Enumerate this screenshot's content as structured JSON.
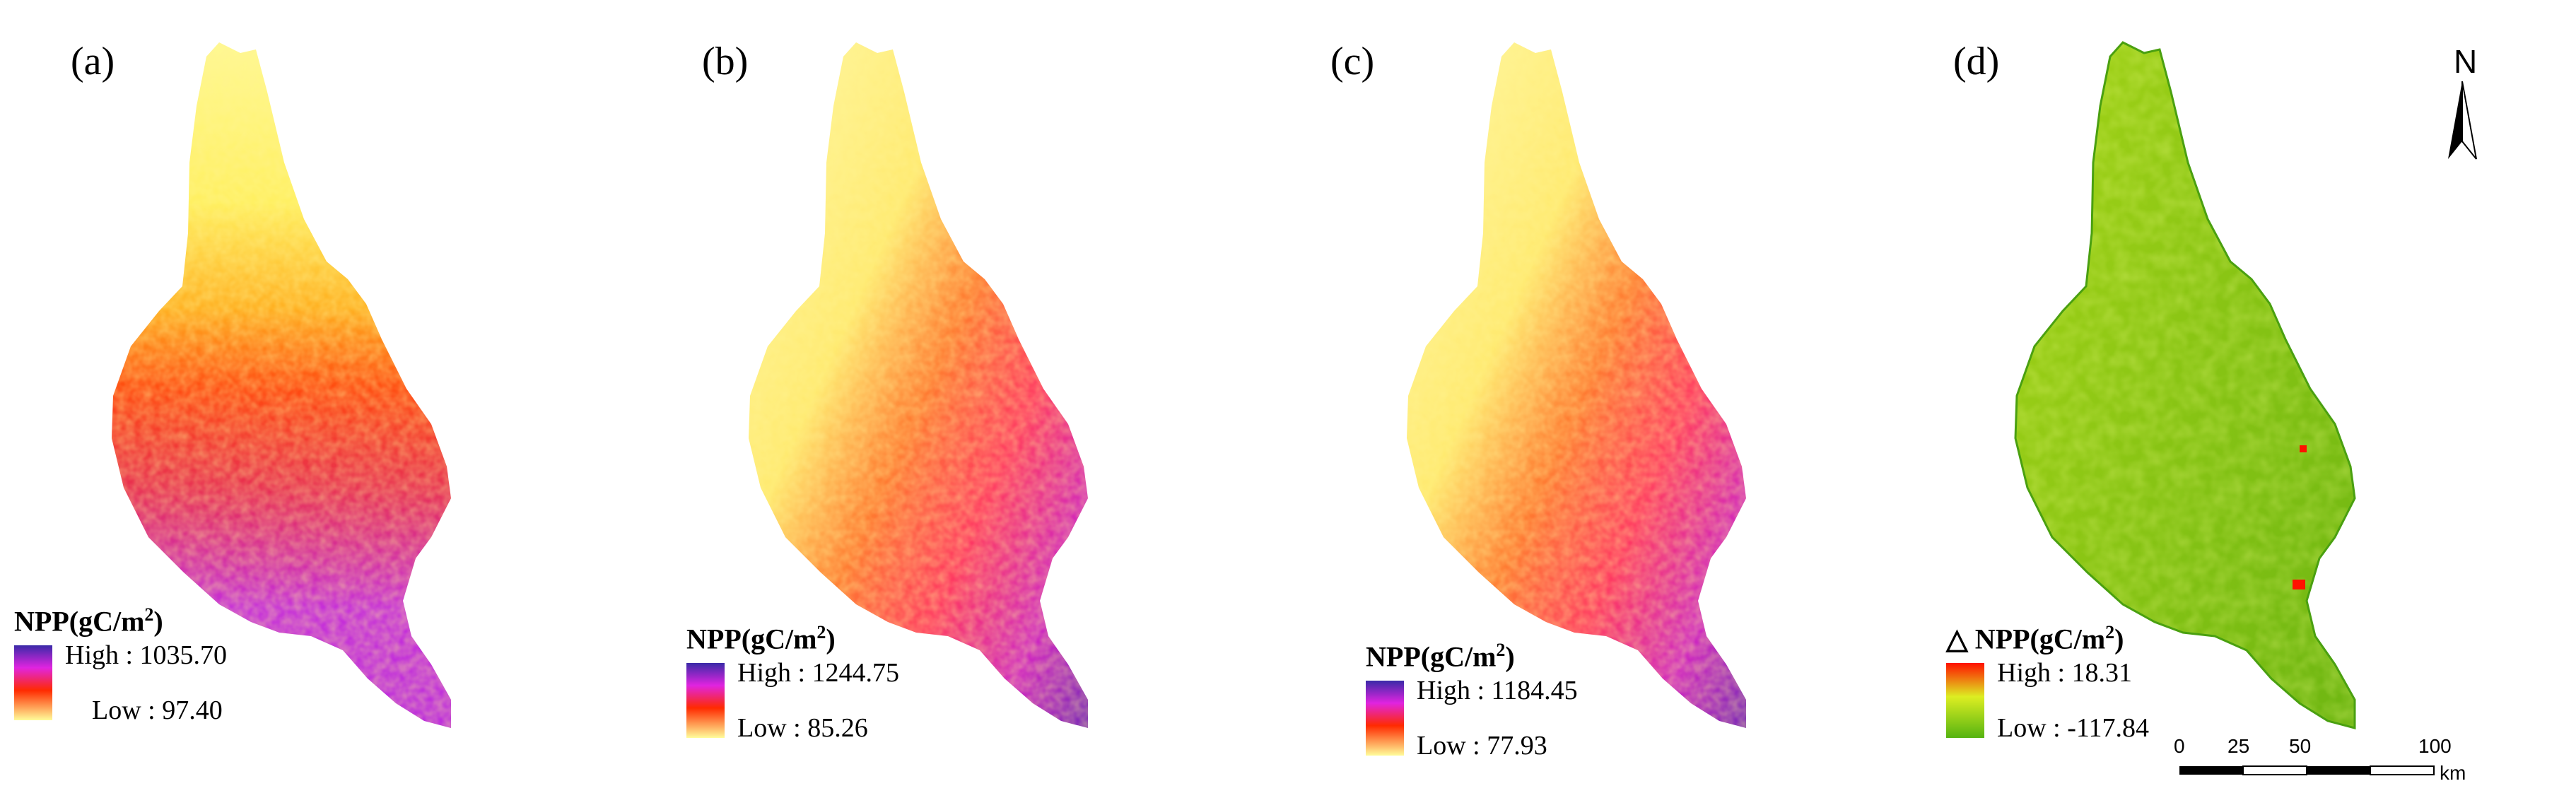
{
  "panels": [
    {
      "label": "(a)",
      "legend_title": "NPP(gC/m",
      "legend_title_sup": "2",
      "legend_title_tail": ")",
      "high": "High : 1035.70",
      "low": "Low : 97.40",
      "colormap": "purple-magenta-red-yellow"
    },
    {
      "label": "(b)",
      "legend_title": "NPP(gC/m",
      "legend_title_sup": "2",
      "legend_title_tail": ")",
      "high": "High : 1244.75",
      "low": "Low : 85.26",
      "colormap": "purple-magenta-red-yellow"
    },
    {
      "label": "(c)",
      "legend_title": "NPP(gC/m",
      "legend_title_sup": "2",
      "legend_title_tail": ")",
      "high": "High : 1184.45",
      "low": "Low : 77.93",
      "colormap": "purple-magenta-red-yellow"
    },
    {
      "label": "(d)",
      "legend_title": "△ NPP(gC/m",
      "legend_title_sup": "2",
      "legend_title_tail": ")",
      "high": "High : 18.31",
      "low": "Low : -117.84",
      "colormap": "red-yellow-green"
    }
  ],
  "north_arrow": {
    "letter": "N"
  },
  "scalebar": {
    "ticks": [
      "0",
      "25",
      "50",
      "100"
    ],
    "unit": "km"
  },
  "colors": {
    "npp_low": "#fffc9a",
    "npp_mid": "#ff2a00",
    "npp_high": "#3a2aa8",
    "npp_magenta": "#e024e0",
    "dnpp_low": "#55b411",
    "dnpp_mid": "#ddee22",
    "dnpp_high": "#ff1100"
  }
}
